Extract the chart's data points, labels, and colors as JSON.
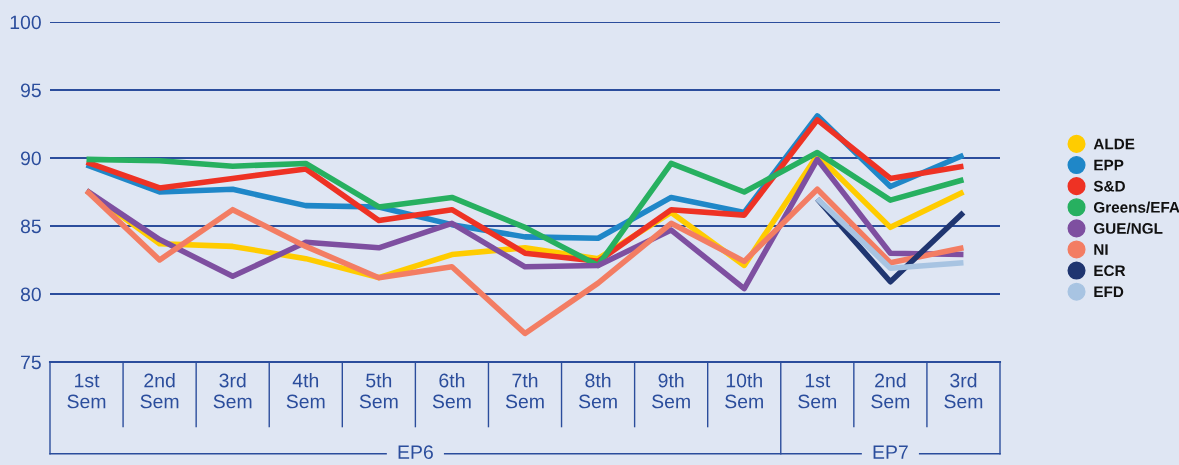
{
  "chart_data": {
    "type": "line",
    "categories": [
      "1st\nSem",
      "2nd\nSem",
      "3rd\nSem",
      "4th\nSem",
      "5th\nSem",
      "6th\nSem",
      "7th\nSem",
      "8th\nSem",
      "9th\nSem",
      "10th\nSem",
      "1st\nSem",
      "2nd\nSem",
      "3rd\nSem"
    ],
    "series": [
      {
        "name": "ALDE",
        "color": "#ffcc00",
        "values": [
          87.6,
          83.7,
          83.5,
          82.6,
          81.2,
          82.9,
          83.4,
          82.6,
          86.0,
          82.1,
          90.2,
          84.9,
          87.5
        ]
      },
      {
        "name": "EPP",
        "color": "#1f87c8",
        "values": [
          89.5,
          87.5,
          87.7,
          86.5,
          86.4,
          85.1,
          84.2,
          84.1,
          87.1,
          86.0,
          93.1,
          87.9,
          90.2
        ]
      },
      {
        "name": "S&D",
        "color": "#ee3224",
        "values": [
          89.7,
          87.8,
          88.5,
          89.2,
          85.4,
          86.2,
          83.0,
          82.4,
          86.2,
          85.8,
          92.8,
          88.5,
          89.4
        ]
      },
      {
        "name": "Greens/EFA",
        "color": "#27b060",
        "values": [
          89.9,
          89.8,
          89.4,
          89.6,
          86.4,
          87.1,
          84.9,
          82.1,
          89.6,
          87.5,
          90.4,
          86.9,
          88.4
        ]
      },
      {
        "name": "GUE/NGL",
        "color": "#7e4fa0",
        "values": [
          87.6,
          84.0,
          81.3,
          83.8,
          83.4,
          85.2,
          82.0,
          82.1,
          84.7,
          80.4,
          89.9,
          83.0,
          82.9
        ]
      },
      {
        "name": "NI",
        "color": "#f37d63",
        "values": [
          87.6,
          82.5,
          86.2,
          83.5,
          81.2,
          82.0,
          77.1,
          80.8,
          85.2,
          82.4,
          87.7,
          82.3,
          83.4
        ]
      },
      {
        "name": "ECR",
        "color": "#1f3570",
        "values": [
          null,
          null,
          null,
          null,
          null,
          null,
          null,
          null,
          null,
          null,
          87.0,
          80.9,
          86.0
        ]
      },
      {
        "name": "EFD",
        "color": "#a8c4e2",
        "values": [
          null,
          null,
          null,
          null,
          null,
          null,
          null,
          null,
          null,
          null,
          87.0,
          81.9,
          82.3
        ]
      }
    ],
    "ylim": [
      75,
      100
    ],
    "yticks": [
      75,
      80,
      85,
      90,
      95,
      100
    ],
    "grid": "y",
    "legend": "right",
    "annotations": [
      "EP6",
      "EP7"
    ]
  }
}
